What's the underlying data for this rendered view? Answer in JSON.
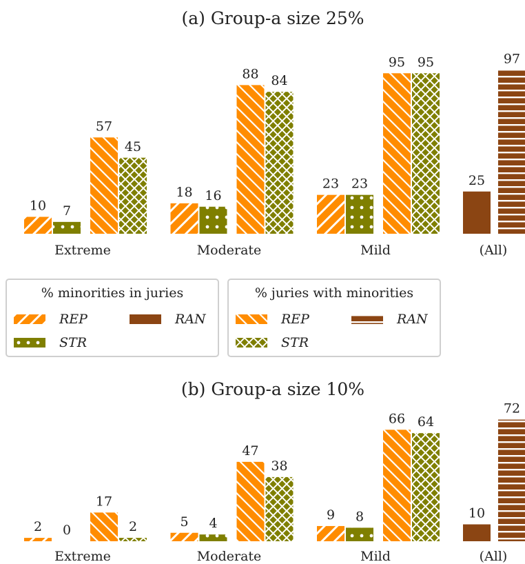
{
  "colors": {
    "orange": "#ff8c00",
    "olive": "#7f7f00",
    "brown": "#8b4513"
  },
  "chart_data": [
    {
      "type": "bar",
      "title": "(a) Group-a size 25%",
      "categories": [
        "Extreme",
        "Moderate",
        "Mild",
        "(All)"
      ],
      "series": [
        {
          "name": "% minorities in juries — REP",
          "values": [
            10,
            18,
            23,
            null
          ]
        },
        {
          "name": "% minorities in juries — STR",
          "values": [
            7,
            16,
            23,
            null
          ]
        },
        {
          "name": "% juries with minorities — REP",
          "values": [
            57,
            88,
            95,
            null
          ]
        },
        {
          "name": "% juries with minorities — STR",
          "values": [
            45,
            84,
            95,
            null
          ]
        },
        {
          "name": "% minorities in juries — RAN",
          "values": [
            null,
            null,
            null,
            25
          ]
        },
        {
          "name": "% juries with minorities — RAN",
          "values": [
            null,
            null,
            null,
            97
          ]
        }
      ],
      "ylim": [
        0,
        100
      ],
      "xlabel": "",
      "ylabel": ""
    },
    {
      "type": "bar",
      "title": "(b) Group-a size 10%",
      "categories": [
        "Extreme",
        "Moderate",
        "Mild",
        "(All)"
      ],
      "series": [
        {
          "name": "% minorities in juries — REP",
          "values": [
            2,
            5,
            9,
            null
          ]
        },
        {
          "name": "% minorities in juries — STR",
          "values": [
            0,
            4,
            8,
            null
          ]
        },
        {
          "name": "% juries with minorities — REP",
          "values": [
            17,
            47,
            66,
            null
          ]
        },
        {
          "name": "% juries with minorities — STR",
          "values": [
            2,
            38,
            64,
            null
          ]
        },
        {
          "name": "% minorities in juries — RAN",
          "values": [
            null,
            null,
            null,
            10
          ]
        },
        {
          "name": "% juries with minorities — RAN",
          "values": [
            null,
            null,
            null,
            72
          ]
        }
      ],
      "ylim": [
        0,
        100
      ],
      "xlabel": "",
      "ylabel": ""
    }
  ],
  "legend": [
    {
      "title": "% minorities in juries",
      "entries": [
        {
          "label": "REP",
          "pattern": "diag-thick-orange"
        },
        {
          "label": "RAN",
          "pattern": "solid-brown"
        },
        {
          "label": "STR",
          "pattern": "dots-olive"
        }
      ]
    },
    {
      "title": "% juries with minorities",
      "entries": [
        {
          "label": "REP",
          "pattern": "diag-orange"
        },
        {
          "label": "RAN",
          "pattern": "hstripe-brown"
        },
        {
          "label": "STR",
          "pattern": "cross-olive"
        }
      ]
    }
  ]
}
